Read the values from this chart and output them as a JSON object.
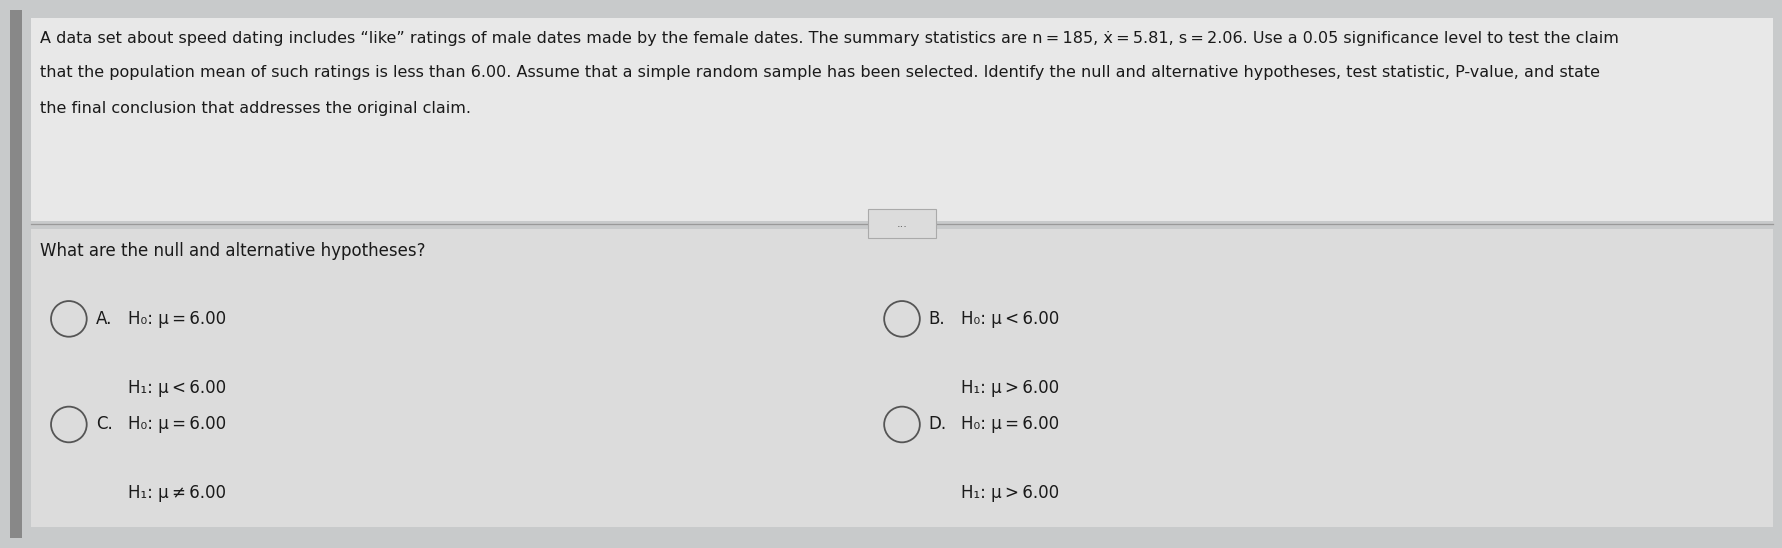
{
  "bg_color": "#c8cacb",
  "header_bg": "#e8e8e8",
  "bottom_bg": "#dcdcdc",
  "text_color": "#1a1a1a",
  "option_text_color": "#1a1a1a",
  "divider_color": "#999999",
  "circle_color": "#555555",
  "header_line1": "A data set about speed dating includes “like” ratings of male dates made by the female dates. The summary statistics are n = 185, ẋ = 5.81, s = 2.06. Use a 0.05 significance level to test the claim",
  "header_line2": "that the population mean of such ratings is less than 6.00. Assume that a simple random sample has been selected. Identify the null and alternative hypotheses, test statistic, P-value, and state",
  "header_line3": "the final conclusion that addresses the original claim.",
  "divider_btn": "...",
  "question": "What are the null and alternative hypotheses?",
  "opt_A_h0": "H₀: μ = 6.00",
  "opt_A_h1": "H₁: μ < 6.00",
  "opt_B_h0": "H₀: μ < 6.00",
  "opt_B_h1": "H₁: μ > 6.00",
  "opt_C_h0": "H₀: μ = 6.00",
  "opt_C_h1": "H₁: μ ≠ 6.00",
  "opt_D_h0": "H₀: μ = 6.00",
  "opt_D_h1": "H₁: μ > 6.00",
  "header_fontsize": 11.5,
  "question_fontsize": 12,
  "option_fontsize": 12
}
